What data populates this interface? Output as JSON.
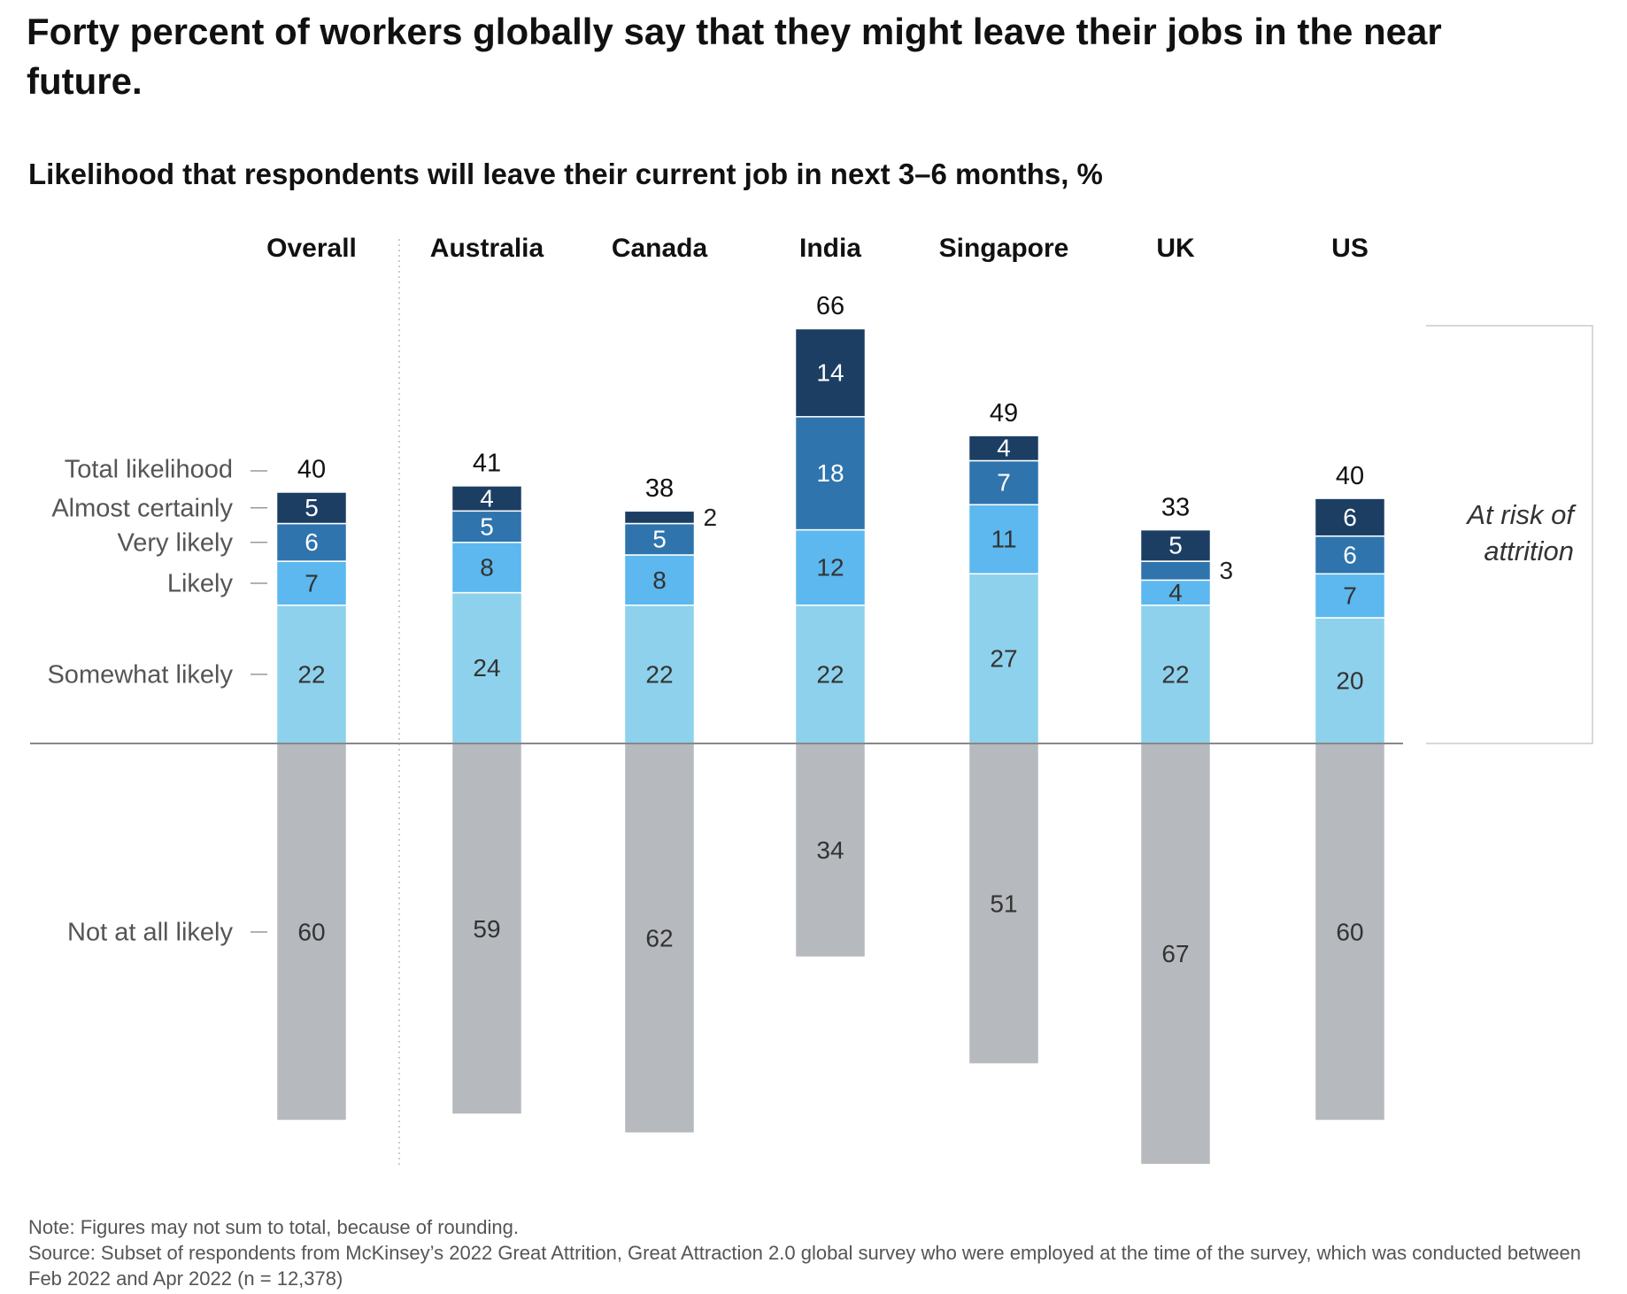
{
  "chart_data": {
    "type": "bar",
    "stacked": true,
    "title": "Forty percent of workers globally say that they might leave their jobs in the near future.",
    "subtitle": "Likelihood that respondents will leave their current job in next 3–6 months, %",
    "categories": [
      "Overall",
      "Australia",
      "Canada",
      "India",
      "Singapore",
      "UK",
      "US"
    ],
    "series": [
      {
        "name": "Somewhat likely",
        "color": "#8ed1ec",
        "values": [
          22,
          24,
          22,
          22,
          27,
          22,
          20
        ]
      },
      {
        "name": "Likely",
        "color": "#5cb8ee",
        "values": [
          7,
          8,
          8,
          12,
          11,
          4,
          7
        ]
      },
      {
        "name": "Very likely",
        "color": "#2f74ad",
        "values": [
          6,
          5,
          5,
          18,
          7,
          3,
          6
        ]
      },
      {
        "name": "Almost certainly",
        "color": "#1c3e63",
        "values": [
          5,
          4,
          2,
          14,
          4,
          5,
          6
        ]
      },
      {
        "name": "Not at all likely",
        "color": "#b6b9bd",
        "values": [
          60,
          59,
          62,
          34,
          51,
          67,
          60
        ],
        "below_axis": true
      }
    ],
    "totals": {
      "name": "Total likelihood",
      "values": [
        40,
        41,
        38,
        66,
        49,
        33,
        40
      ]
    },
    "annotation": [
      "At risk of",
      "attrition"
    ],
    "note": "Note: Figures may not sum to total, because of rounding.",
    "source": "Source: Subset of respondents from McKinsey’s 2022 Great Attrition, Great Attraction 2.0 global survey who were employed at the time of the survey, which was conducted between Feb 2022 and Apr 2022 (n = 12,378)"
  }
}
